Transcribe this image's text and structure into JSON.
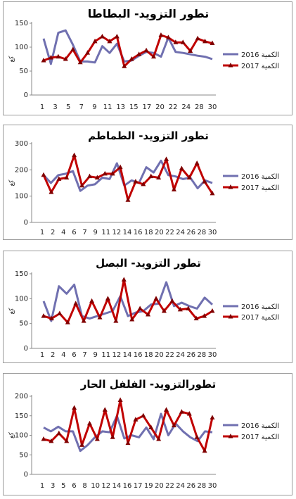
{
  "chart_data": [
    {
      "type": "line",
      "title": "تطور التزويد- البطاطا",
      "ylabel": "كغ",
      "ylim": [
        0,
        150
      ],
      "yticks": [
        0,
        50,
        100,
        150
      ],
      "xticks": [
        "1",
        "3",
        "5",
        "7",
        "9",
        "11",
        "13",
        "15",
        "17",
        "20",
        "22",
        "24",
        "28",
        "30"
      ],
      "series": [
        {
          "name": "2016 الكمية",
          "color": "#7070b0",
          "marker": "none",
          "values": [
            118,
            65,
            130,
            135,
            105,
            70,
            70,
            68,
            102,
            88,
            107,
            70,
            72,
            82,
            90,
            88,
            80,
            120,
            90,
            88,
            85,
            82,
            80,
            75
          ]
        },
        {
          "name": "2017 الكمية",
          "color": "#c00000",
          "marker": "triangle",
          "values": [
            72,
            78,
            80,
            75,
            95,
            68,
            88,
            112,
            122,
            112,
            122,
            60,
            75,
            85,
            93,
            80,
            125,
            120,
            110,
            110,
            92,
            118,
            112,
            108
          ]
        }
      ]
    },
    {
      "type": "line",
      "title": "تطور التزويد- الطماطم",
      "ylabel": "كغ",
      "ylim": [
        0,
        300
      ],
      "yticks": [
        0,
        100,
        200,
        300
      ],
      "xticks": [
        "1",
        "2",
        "4",
        "6",
        "7",
        "9",
        "11",
        "12",
        "14",
        "16",
        "18",
        "20",
        "22",
        "24",
        "26",
        "28",
        "30"
      ],
      "series": [
        {
          "name": "2016 الكمية",
          "color": "#7070b0",
          "marker": "none",
          "values": [
            180,
            150,
            180,
            185,
            195,
            120,
            140,
            145,
            170,
            165,
            225,
            140,
            160,
            150,
            210,
            190,
            235,
            180,
            175,
            165,
            170,
            130,
            160,
            150
          ]
        },
        {
          "name": "2017 الكمية",
          "color": "#c00000",
          "marker": "triangle",
          "values": [
            180,
            115,
            165,
            170,
            255,
            140,
            175,
            170,
            185,
            185,
            210,
            85,
            155,
            145,
            175,
            170,
            240,
            125,
            205,
            170,
            225,
            155,
            110
          ]
        }
      ]
    },
    {
      "type": "line",
      "title": "تطور التزويد- البصل",
      "ylabel": "كغ",
      "ylim": [
        0,
        150
      ],
      "yticks": [
        0,
        50,
        100,
        150
      ],
      "xticks": [
        "1",
        "2",
        "4",
        "6",
        "7",
        "9",
        "11",
        "12",
        "14",
        "16",
        "18",
        "20",
        "22",
        "24",
        "26",
        "28",
        "30"
      ],
      "series": [
        {
          "name": "2016 الكمية",
          "color": "#7070b0",
          "marker": "none",
          "values": [
            95,
            55,
            125,
            110,
            128,
            65,
            60,
            65,
            70,
            75,
            105,
            65,
            72,
            75,
            88,
            90,
            133,
            85,
            92,
            85,
            80,
            102,
            88
          ]
        },
        {
          "name": "2017 الكمية",
          "color": "#c00000",
          "marker": "triangle",
          "values": [
            65,
            60,
            70,
            52,
            90,
            55,
            95,
            62,
            100,
            55,
            138,
            58,
            80,
            68,
            100,
            75,
            95,
            78,
            80,
            60,
            65,
            75
          ]
        }
      ]
    },
    {
      "type": "line",
      "title": "تطورالتزويد- الفلفل الحار",
      "ylabel": "كغ",
      "ylim": [
        0,
        200
      ],
      "yticks": [
        0,
        50,
        100,
        150,
        200
      ],
      "xticks": [
        "1",
        "3",
        "5",
        "6",
        "8",
        "10",
        "12",
        "14",
        "16",
        "17",
        "19",
        "20",
        "22",
        "24",
        "26",
        "28",
        "30"
      ],
      "series": [
        {
          "name": "2016 الكمية",
          "color": "#7070b0",
          "marker": "none",
          "values": [
            120,
            110,
            122,
            110,
            110,
            60,
            75,
            95,
            110,
            108,
            150,
            92,
            100,
            95,
            120,
            90,
            155,
            100,
            130,
            110,
            95,
            85,
            110,
            108
          ]
        },
        {
          "name": "2017 الكمية",
          "color": "#c00000",
          "marker": "triangle",
          "values": [
            90,
            85,
            105,
            85,
            170,
            75,
            130,
            90,
            165,
            95,
            190,
            80,
            140,
            150,
            120,
            90,
            165,
            125,
            160,
            155,
            95,
            60,
            145
          ]
        }
      ]
    }
  ]
}
